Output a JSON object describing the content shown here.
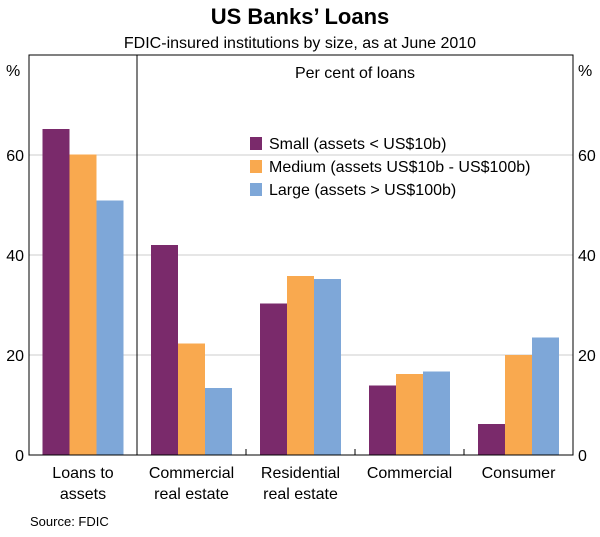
{
  "chart_data": {
    "type": "bar",
    "title": "US Banks’ Loans",
    "subtitle": "FDIC-insured institutions by size, as at June 2010",
    "panel_label": "Per cent of loans",
    "ylabel_left": "%",
    "ylabel_right": "%",
    "ylim": [
      0,
      80
    ],
    "yticks": [
      0,
      20,
      40,
      60
    ],
    "grid": true,
    "legend_position": "top-right",
    "categories": [
      [
        "Loans to",
        "assets"
      ],
      [
        "Commercial",
        "real estate"
      ],
      [
        "Residential",
        "real estate"
      ],
      [
        "Commercial",
        ""
      ],
      [
        "Consumer",
        ""
      ]
    ],
    "series": [
      {
        "name": "Small (assets < US$10b)",
        "color": "#7a2a6b",
        "values": [
          65.2,
          42.0,
          30.3,
          13.9,
          6.2
        ]
      },
      {
        "name": "Medium (assets US$10b - US$100b)",
        "color": "#f9a94f",
        "values": [
          60.1,
          22.3,
          35.8,
          16.2,
          20.0
        ]
      },
      {
        "name": "Large (assets > US$100b)",
        "color": "#7ea7d8",
        "values": [
          50.9,
          13.4,
          35.2,
          16.7,
          23.5
        ]
      }
    ],
    "source": "Source: FDIC"
  }
}
